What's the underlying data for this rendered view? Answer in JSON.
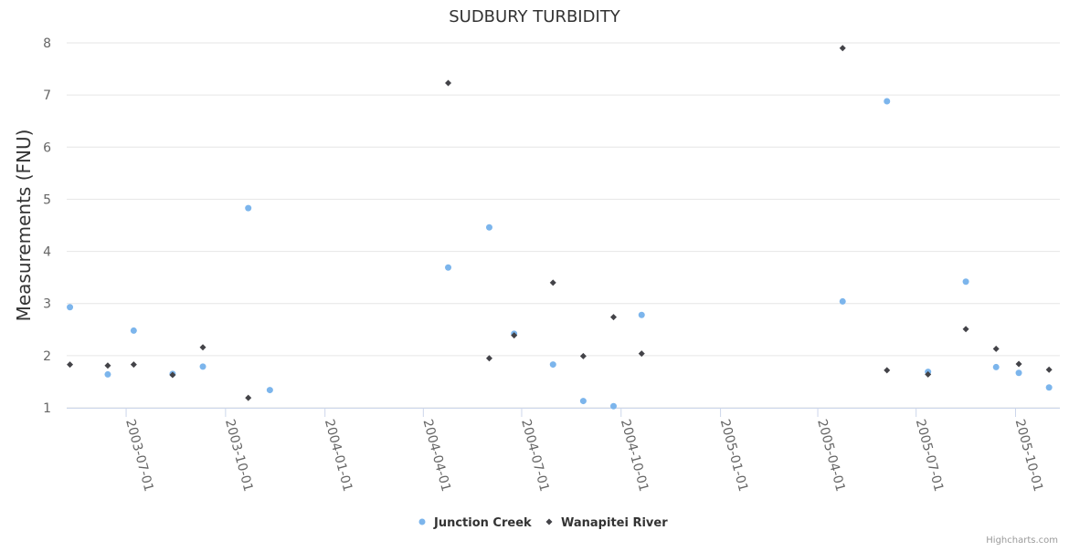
{
  "chart_data": {
    "type": "scatter",
    "title": "SUDBURY TURBIDITY",
    "xlabel": "",
    "ylabel": "Measurements (FNU)",
    "ylim": [
      1,
      8
    ],
    "yticks": [
      "1",
      "2",
      "3",
      "4",
      "5",
      "6",
      "7",
      "8"
    ],
    "xlim": [
      "2003-05-07",
      "2005-11-11"
    ],
    "xticks": [
      "2003-07-01",
      "2003-10-01",
      "2004-01-01",
      "2004-04-01",
      "2004-07-01",
      "2004-10-01",
      "2005-01-01",
      "2005-04-01",
      "2005-07-01",
      "2005-10-01"
    ],
    "grid": true,
    "legend_position": "bottom-center",
    "series": [
      {
        "name": "Junction Creek",
        "color": "#7cb5ec",
        "marker": "circle",
        "points": [
          {
            "x": "2003-05-10",
            "y": 2.93
          },
          {
            "x": "2003-06-14",
            "y": 1.64
          },
          {
            "x": "2003-07-08",
            "y": 2.48
          },
          {
            "x": "2003-08-13",
            "y": 1.65
          },
          {
            "x": "2003-09-10",
            "y": 1.79
          },
          {
            "x": "2003-10-22",
            "y": 4.83
          },
          {
            "x": "2003-11-11",
            "y": 1.34
          },
          {
            "x": "2004-04-24",
            "y": 3.69
          },
          {
            "x": "2004-06-01",
            "y": 4.46
          },
          {
            "x": "2004-06-24",
            "y": 2.42
          },
          {
            "x": "2004-07-30",
            "y": 1.83
          },
          {
            "x": "2004-08-27",
            "y": 1.13
          },
          {
            "x": "2004-09-24",
            "y": 1.03
          },
          {
            "x": "2004-10-20",
            "y": 2.78
          },
          {
            "x": "2005-04-24",
            "y": 3.04
          },
          {
            "x": "2005-06-04",
            "y": 6.88
          },
          {
            "x": "2005-07-12",
            "y": 1.69
          },
          {
            "x": "2005-08-16",
            "y": 3.42
          },
          {
            "x": "2005-09-13",
            "y": 1.78
          },
          {
            "x": "2005-10-04",
            "y": 1.67
          },
          {
            "x": "2005-11-01",
            "y": 1.39
          }
        ]
      },
      {
        "name": "Wanapitei River",
        "color": "#434348",
        "marker": "diamond",
        "points": [
          {
            "x": "2003-05-10",
            "y": 1.83
          },
          {
            "x": "2003-06-14",
            "y": 1.81
          },
          {
            "x": "2003-07-08",
            "y": 1.83
          },
          {
            "x": "2003-08-13",
            "y": 1.63
          },
          {
            "x": "2003-09-10",
            "y": 2.16
          },
          {
            "x": "2003-10-22",
            "y": 1.19
          },
          {
            "x": "2004-04-24",
            "y": 7.23
          },
          {
            "x": "2004-06-01",
            "y": 1.95
          },
          {
            "x": "2004-06-24",
            "y": 2.39
          },
          {
            "x": "2004-07-30",
            "y": 3.4
          },
          {
            "x": "2004-08-27",
            "y": 1.99
          },
          {
            "x": "2004-09-24",
            "y": 2.74
          },
          {
            "x": "2004-10-20",
            "y": 2.04
          },
          {
            "x": "2005-04-24",
            "y": 7.9
          },
          {
            "x": "2005-06-04",
            "y": 1.72
          },
          {
            "x": "2005-07-12",
            "y": 1.64
          },
          {
            "x": "2005-08-16",
            "y": 2.51
          },
          {
            "x": "2005-09-13",
            "y": 2.13
          },
          {
            "x": "2005-10-04",
            "y": 1.84
          },
          {
            "x": "2005-11-01",
            "y": 1.73
          }
        ]
      }
    ]
  },
  "credits": "Highcharts.com"
}
